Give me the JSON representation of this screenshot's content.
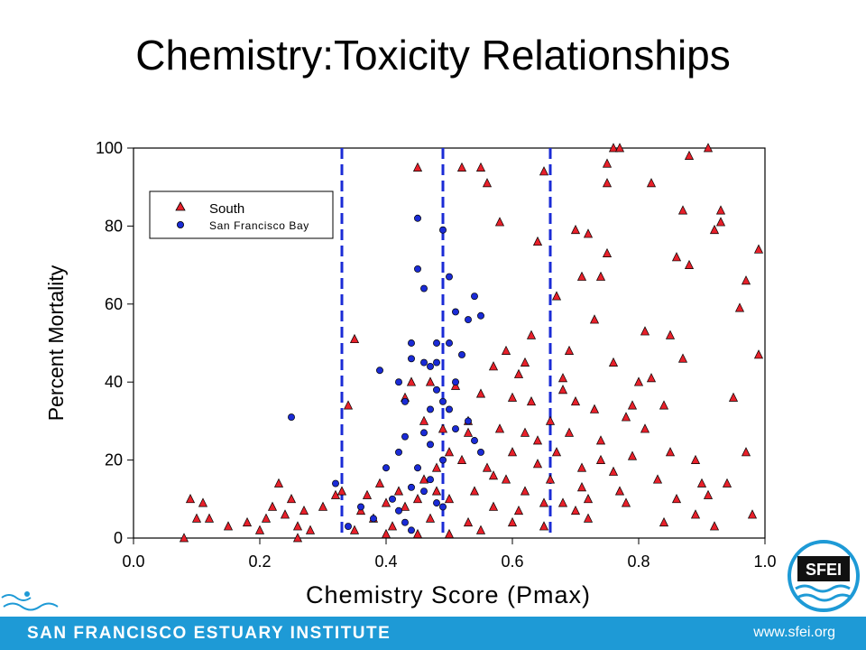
{
  "title": "Chemistry:Toxicity Relationships",
  "footer": {
    "institute": "SAN FRANCISCO ESTUARY INSTITUTE",
    "url": "www.sfei.org"
  },
  "colors": {
    "south": "#e8202a",
    "bay": "#1a2bd6",
    "vline": "#1a2bd6",
    "footer": "#1e9ad6"
  },
  "icons": {
    "logo": "sfei-logo-icon",
    "wave": "swimmer-wave-icon"
  },
  "chart_data": {
    "type": "scatter",
    "xlabel": "Chemistry Score (Pmax)",
    "ylabel": "Percent Mortality",
    "xlim": [
      0.0,
      1.0
    ],
    "ylim": [
      0,
      100
    ],
    "xticks": [
      "0.0",
      "0.2",
      "0.4",
      "0.6",
      "0.8",
      "1.0"
    ],
    "yticks": [
      "0",
      "20",
      "40",
      "60",
      "80",
      "100"
    ],
    "legend_position": "top-left",
    "vlines": [
      0.33,
      0.49,
      0.66
    ],
    "series": [
      {
        "name": "South",
        "marker": "triangle",
        "points": [
          [
            0.08,
            0
          ],
          [
            0.09,
            10
          ],
          [
            0.11,
            9
          ],
          [
            0.12,
            5
          ],
          [
            0.1,
            5
          ],
          [
            0.15,
            3
          ],
          [
            0.18,
            4
          ],
          [
            0.2,
            2
          ],
          [
            0.21,
            5
          ],
          [
            0.22,
            8
          ],
          [
            0.23,
            14
          ],
          [
            0.24,
            6
          ],
          [
            0.25,
            10
          ],
          [
            0.26,
            3
          ],
          [
            0.27,
            7
          ],
          [
            0.26,
            0
          ],
          [
            0.28,
            2
          ],
          [
            0.3,
            8
          ],
          [
            0.32,
            11
          ],
          [
            0.33,
            12
          ],
          [
            0.34,
            34
          ],
          [
            0.35,
            51
          ],
          [
            0.36,
            7
          ],
          [
            0.37,
            11
          ],
          [
            0.38,
            5
          ],
          [
            0.39,
            14
          ],
          [
            0.4,
            9
          ],
          [
            0.41,
            3
          ],
          [
            0.42,
            12
          ],
          [
            0.43,
            8
          ],
          [
            0.43,
            36
          ],
          [
            0.44,
            40
          ],
          [
            0.45,
            95
          ],
          [
            0.45,
            10
          ],
          [
            0.46,
            15
          ],
          [
            0.46,
            30
          ],
          [
            0.47,
            40
          ],
          [
            0.47,
            5
          ],
          [
            0.48,
            12
          ],
          [
            0.48,
            18
          ],
          [
            0.49,
            28
          ],
          [
            0.5,
            22
          ],
          [
            0.5,
            10
          ],
          [
            0.51,
            39
          ],
          [
            0.52,
            95
          ],
          [
            0.52,
            20
          ],
          [
            0.53,
            4
          ],
          [
            0.53,
            30
          ],
          [
            0.54,
            12
          ],
          [
            0.55,
            95
          ],
          [
            0.55,
            37
          ],
          [
            0.56,
            91
          ],
          [
            0.56,
            18
          ],
          [
            0.57,
            44
          ],
          [
            0.57,
            8
          ],
          [
            0.58,
            81
          ],
          [
            0.58,
            28
          ],
          [
            0.59,
            15
          ],
          [
            0.59,
            48
          ],
          [
            0.6,
            36
          ],
          [
            0.6,
            22
          ],
          [
            0.61,
            7
          ],
          [
            0.61,
            42
          ],
          [
            0.62,
            27
          ],
          [
            0.62,
            12
          ],
          [
            0.63,
            35
          ],
          [
            0.63,
            52
          ],
          [
            0.64,
            76
          ],
          [
            0.64,
            19
          ],
          [
            0.65,
            94
          ],
          [
            0.65,
            9
          ],
          [
            0.66,
            30
          ],
          [
            0.66,
            15
          ],
          [
            0.67,
            62
          ],
          [
            0.67,
            22
          ],
          [
            0.68,
            41
          ],
          [
            0.68,
            9
          ],
          [
            0.69,
            27
          ],
          [
            0.69,
            48
          ],
          [
            0.7,
            79
          ],
          [
            0.7,
            35
          ],
          [
            0.71,
            18
          ],
          [
            0.71,
            67
          ],
          [
            0.72,
            78
          ],
          [
            0.72,
            10
          ],
          [
            0.73,
            33
          ],
          [
            0.73,
            56
          ],
          [
            0.74,
            67
          ],
          [
            0.74,
            25
          ],
          [
            0.75,
            96
          ],
          [
            0.75,
            91
          ],
          [
            0.75,
            73
          ],
          [
            0.76,
            100
          ],
          [
            0.76,
            45
          ],
          [
            0.77,
            100
          ],
          [
            0.77,
            12
          ],
          [
            0.78,
            31
          ],
          [
            0.79,
            21
          ],
          [
            0.8,
            40
          ],
          [
            0.81,
            53
          ],
          [
            0.81,
            28
          ],
          [
            0.82,
            91
          ],
          [
            0.82,
            41
          ],
          [
            0.83,
            15
          ],
          [
            0.84,
            34
          ],
          [
            0.85,
            52
          ],
          [
            0.85,
            22
          ],
          [
            0.86,
            72
          ],
          [
            0.86,
            10
          ],
          [
            0.87,
            84
          ],
          [
            0.87,
            46
          ],
          [
            0.88,
            98
          ],
          [
            0.88,
            70
          ],
          [
            0.89,
            20
          ],
          [
            0.9,
            14
          ],
          [
            0.91,
            100
          ],
          [
            0.91,
            11
          ],
          [
            0.92,
            79
          ],
          [
            0.93,
            81
          ],
          [
            0.93,
            84
          ],
          [
            0.94,
            14
          ],
          [
            0.95,
            36
          ],
          [
            0.96,
            59
          ],
          [
            0.97,
            66
          ],
          [
            0.97,
            22
          ],
          [
            0.98,
            6
          ],
          [
            0.99,
            47
          ],
          [
            0.99,
            74
          ],
          [
            0.74,
            20
          ],
          [
            0.72,
            5
          ],
          [
            0.6,
            4
          ],
          [
            0.55,
            2
          ],
          [
            0.5,
            1
          ],
          [
            0.45,
            1
          ],
          [
            0.4,
            1
          ],
          [
            0.35,
            2
          ],
          [
            0.65,
            3
          ],
          [
            0.7,
            7
          ],
          [
            0.78,
            9
          ],
          [
            0.84,
            4
          ],
          [
            0.89,
            6
          ],
          [
            0.92,
            3
          ],
          [
            0.62,
            45
          ],
          [
            0.68,
            38
          ],
          [
            0.79,
            34
          ],
          [
            0.53,
            27
          ],
          [
            0.57,
            16
          ],
          [
            0.64,
            25
          ],
          [
            0.71,
            13
          ],
          [
            0.76,
            17
          ]
        ]
      },
      {
        "name": "San Francisco Bay",
        "marker": "circle",
        "points": [
          [
            0.25,
            31
          ],
          [
            0.32,
            14
          ],
          [
            0.34,
            3
          ],
          [
            0.36,
            8
          ],
          [
            0.38,
            5
          ],
          [
            0.39,
            43
          ],
          [
            0.4,
            18
          ],
          [
            0.41,
            10
          ],
          [
            0.42,
            22
          ],
          [
            0.42,
            40
          ],
          [
            0.43,
            4
          ],
          [
            0.43,
            35
          ],
          [
            0.44,
            50
          ],
          [
            0.44,
            46
          ],
          [
            0.44,
            13
          ],
          [
            0.45,
            82
          ],
          [
            0.45,
            69
          ],
          [
            0.46,
            64
          ],
          [
            0.46,
            45
          ],
          [
            0.46,
            27
          ],
          [
            0.47,
            24
          ],
          [
            0.47,
            44
          ],
          [
            0.47,
            15
          ],
          [
            0.48,
            9
          ],
          [
            0.48,
            38
          ],
          [
            0.48,
            50
          ],
          [
            0.49,
            79
          ],
          [
            0.49,
            35
          ],
          [
            0.49,
            20
          ],
          [
            0.5,
            67
          ],
          [
            0.5,
            33
          ],
          [
            0.5,
            50
          ],
          [
            0.51,
            58
          ],
          [
            0.51,
            28
          ],
          [
            0.52,
            47
          ],
          [
            0.53,
            56
          ],
          [
            0.53,
            30
          ],
          [
            0.54,
            62
          ],
          [
            0.54,
            25
          ],
          [
            0.55,
            57
          ],
          [
            0.55,
            22
          ],
          [
            0.42,
            7
          ],
          [
            0.44,
            2
          ],
          [
            0.47,
            33
          ],
          [
            0.45,
            18
          ],
          [
            0.43,
            26
          ],
          [
            0.48,
            45
          ],
          [
            0.51,
            40
          ],
          [
            0.46,
            12
          ],
          [
            0.49,
            8
          ]
        ]
      }
    ]
  }
}
